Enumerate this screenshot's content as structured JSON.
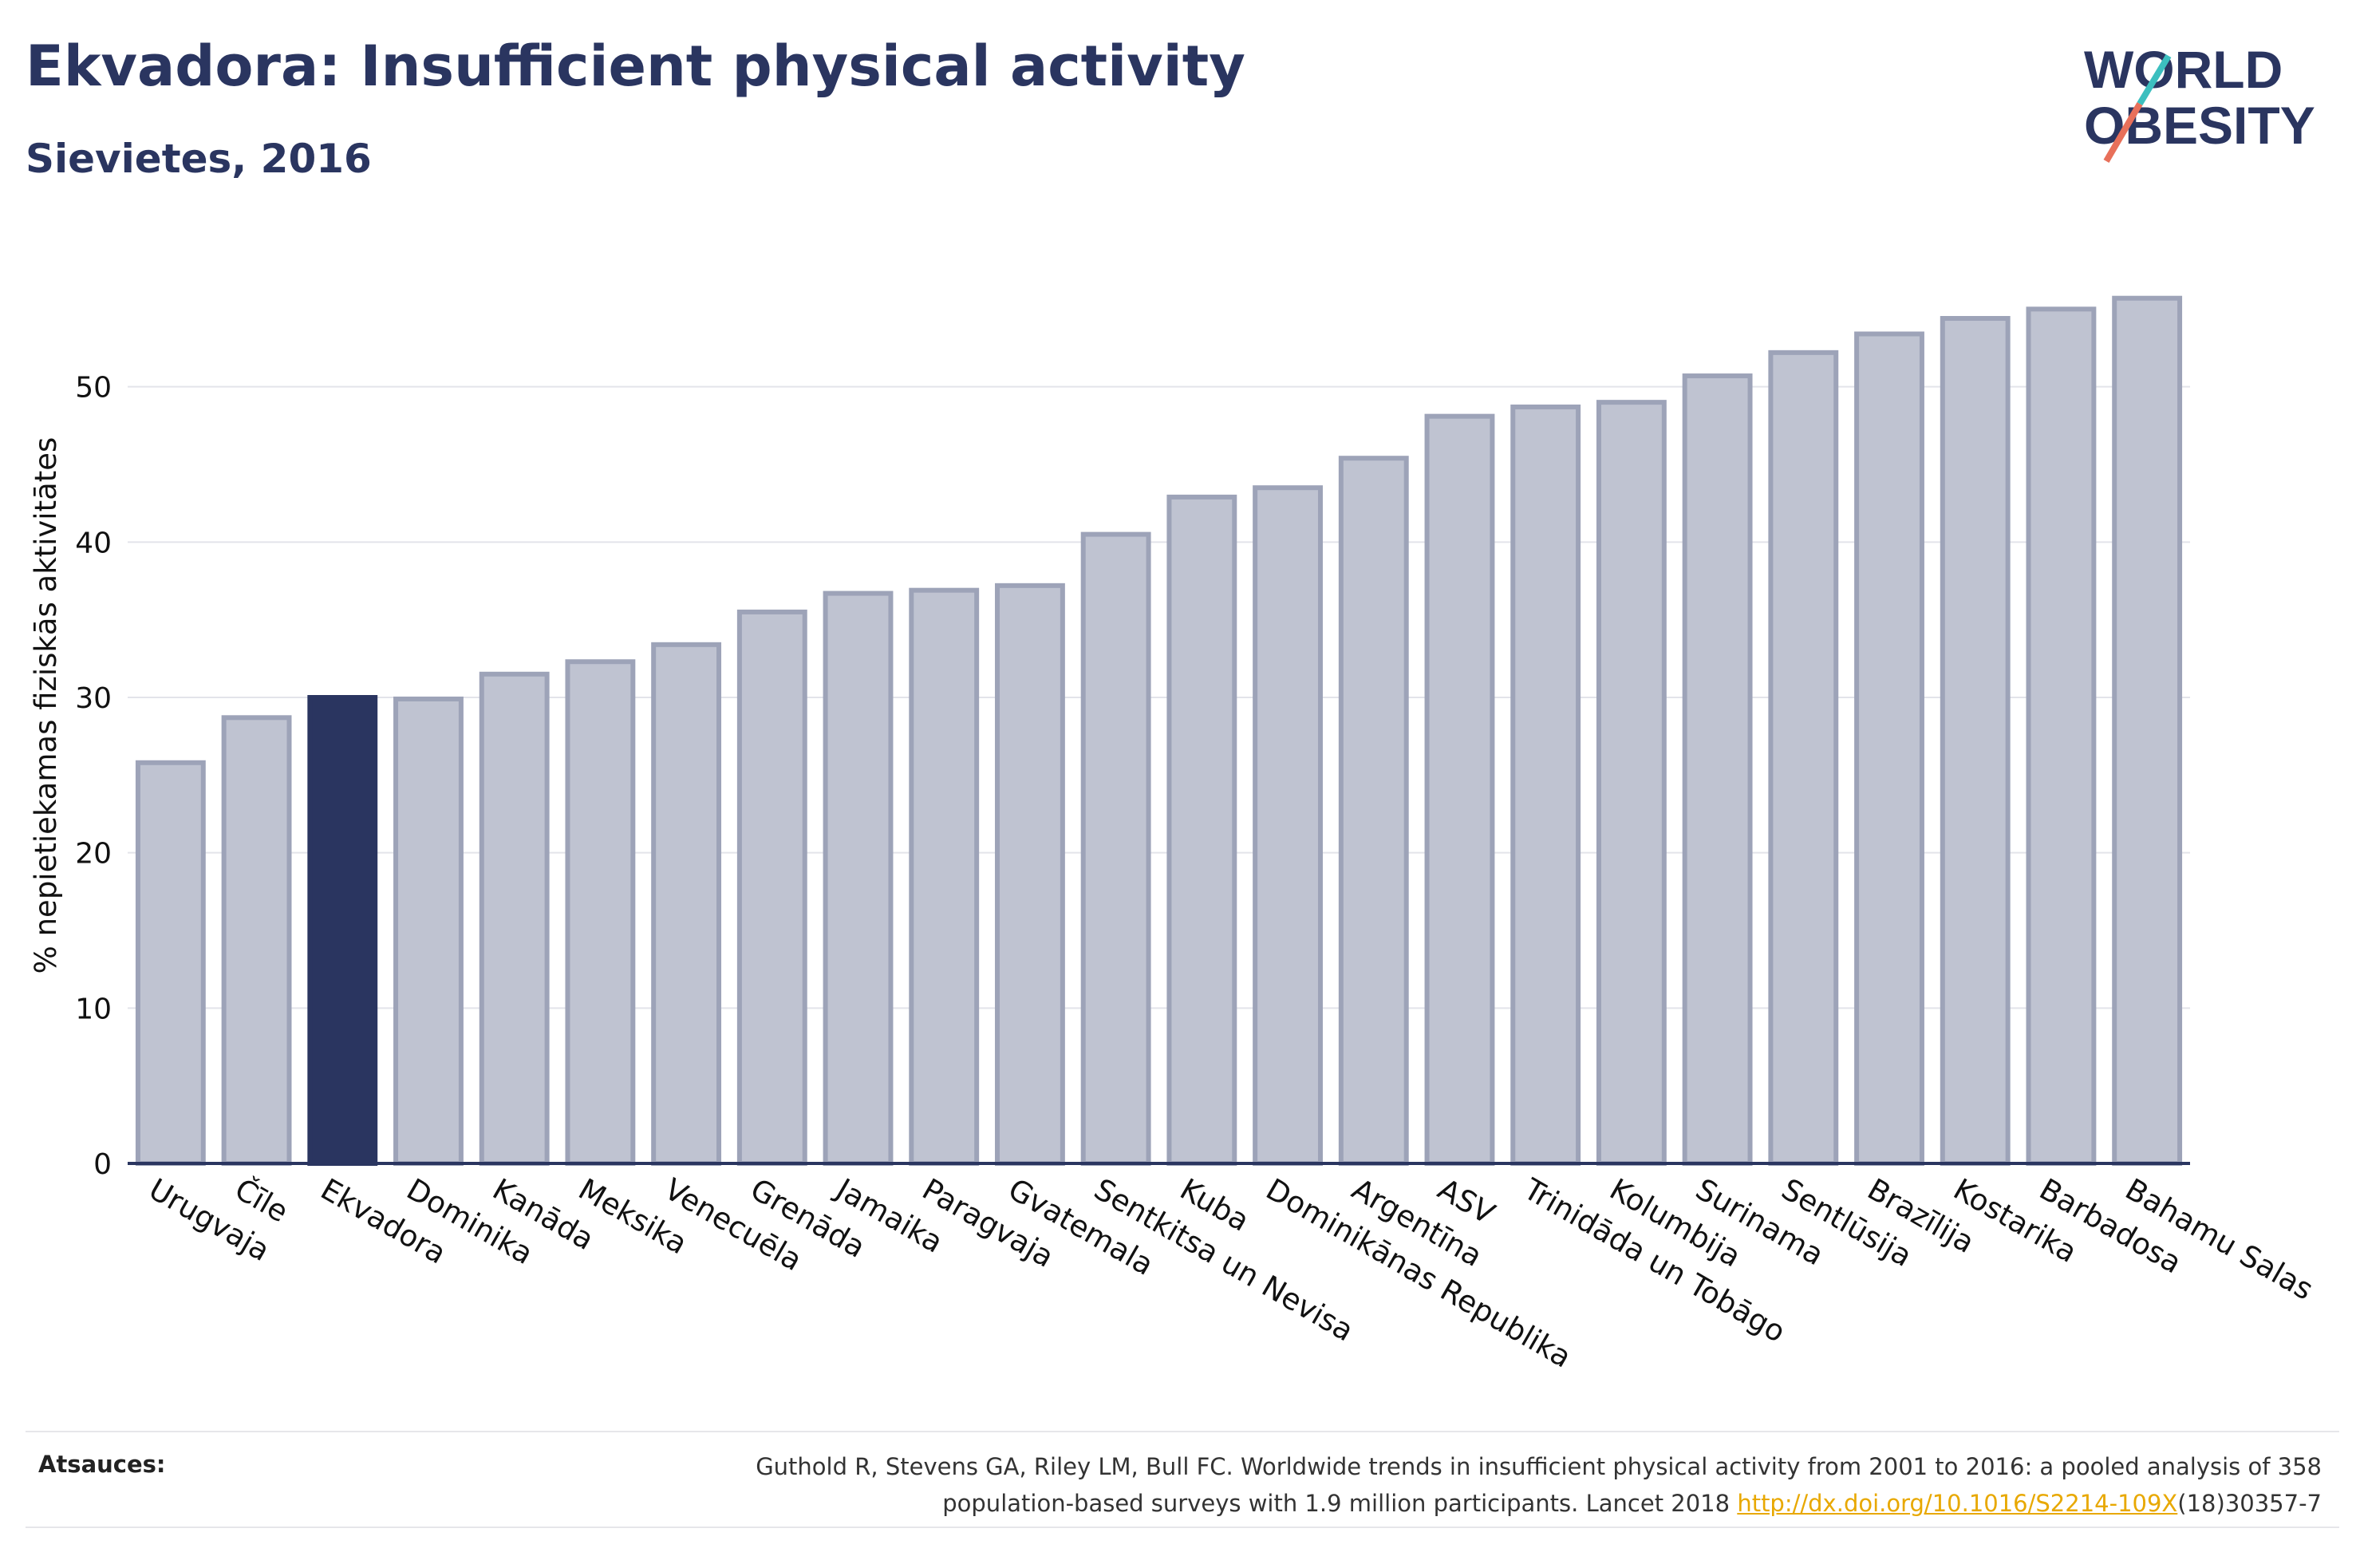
{
  "title": "Ekvadora: Insufficient physical activity",
  "subtitle": "Sievietes, 2016",
  "logo": {
    "line1": "WORLD",
    "line2": "OBESITY"
  },
  "colors": {
    "highlight": "#2a3560",
    "bar": "#bfc3d1",
    "bar_edge": "#9da3b8",
    "text": "#2a3560",
    "logo_accent_teal": "#3cbfbf",
    "logo_accent_coral": "#e8705a",
    "link": "#e8a800"
  },
  "chart_data": {
    "type": "bar",
    "categories": [
      "Urugvaja",
      "Čīle",
      "Ekvadora",
      "Dominika",
      "Kanāda",
      "Meksika",
      "Venecuēla",
      "Grenāda",
      "Jamaika",
      "Paragvaja",
      "Gvatemala",
      "Sentkitsa un Nevisa",
      "Kuba",
      "Dominikānas Republika",
      "Argentīna",
      "ASV",
      "Trinidāda un Tobāgo",
      "Kolumbija",
      "Surinama",
      "Sentlūsija",
      "Brazīlija",
      "Kostarika",
      "Barbadosa",
      "Bahamu Salas"
    ],
    "values": [
      25.8,
      28.7,
      30.0,
      29.9,
      31.5,
      32.3,
      33.4,
      35.5,
      36.7,
      36.9,
      37.2,
      40.5,
      42.9,
      43.5,
      45.4,
      48.1,
      48.7,
      49.0,
      50.7,
      52.2,
      53.4,
      54.4,
      55.0,
      55.7
    ],
    "highlight": "Ekvadora",
    "title": "",
    "xlabel": "",
    "ylabel": "% nepietiekamas fiziskās aktivitātes",
    "ylim": [
      0,
      60
    ],
    "yticks": [
      0,
      10,
      20,
      30,
      40,
      50
    ],
    "grid": true
  },
  "source": {
    "label": "Atsauces:",
    "text_line1": "Guthold R, Stevens GA, Riley LM, Bull FC. Worldwide trends in insufficient physical activity from 2001 to 2016: a pooled analysis of 358",
    "text_line2_pre": "population-based surveys with 1.9 million participants. Lancet 2018 ",
    "link": "http://dx.doi.org/10.1016/S2214-109X",
    "text_line2_post": "(18)30357-7"
  }
}
